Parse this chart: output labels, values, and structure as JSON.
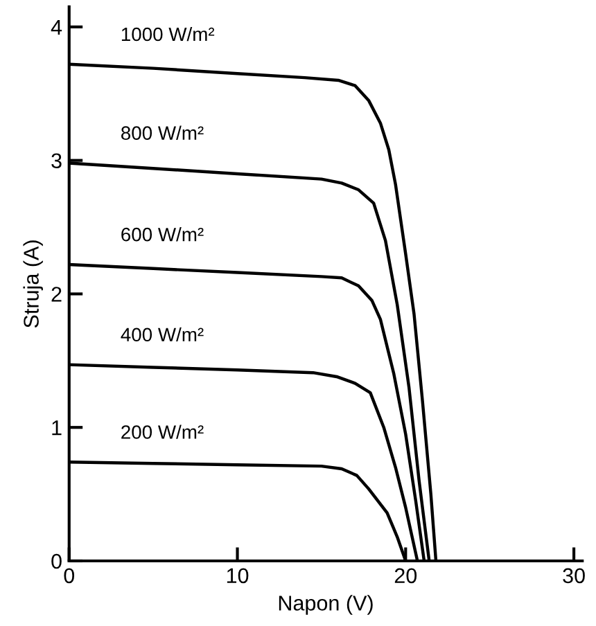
{
  "chart_data": {
    "type": "line",
    "xlabel": "Napon (V)",
    "ylabel": "Struja (A)",
    "xlim": [
      0,
      30.5
    ],
    "ylim": [
      0,
      4.15
    ],
    "xticks": [
      0,
      10,
      20,
      30
    ],
    "yticks": [
      0,
      1,
      2,
      3,
      4
    ],
    "grid": false,
    "legend": false,
    "marker": "none",
    "line_style": "solid",
    "series": [
      {
        "name": "1000 W/m²",
        "color": "#000000",
        "x": [
          0,
          5,
          10,
          14,
          16,
          17,
          17.8,
          18.5,
          19,
          19.4,
          20,
          20.5,
          21,
          21.5,
          21.8
        ],
        "values": [
          3.72,
          3.69,
          3.65,
          3.62,
          3.6,
          3.56,
          3.45,
          3.28,
          3.08,
          2.82,
          2.3,
          1.85,
          1.2,
          0.5,
          0
        ]
      },
      {
        "name": "800 W/m²",
        "color": "#000000",
        "x": [
          0,
          5,
          10,
          15,
          16.2,
          17.2,
          18.1,
          18.8,
          19.5,
          20.2,
          20.8,
          21.4
        ],
        "values": [
          2.98,
          2.94,
          2.9,
          2.86,
          2.83,
          2.78,
          2.68,
          2.4,
          1.92,
          1.3,
          0.6,
          0
        ]
      },
      {
        "name": "600 W/m²",
        "color": "#000000",
        "x": [
          0,
          5,
          10,
          15,
          16.2,
          17.2,
          18,
          18.5,
          19.3,
          20,
          20.6,
          21.1
        ],
        "values": [
          2.22,
          2.19,
          2.16,
          2.13,
          2.12,
          2.06,
          1.95,
          1.81,
          1.4,
          0.95,
          0.45,
          0
        ]
      },
      {
        "name": "400 W/m²",
        "color": "#000000",
        "x": [
          0,
          5,
          10,
          14.5,
          15.9,
          17,
          17.9,
          18.7,
          19.4,
          20,
          20.7
        ],
        "values": [
          1.47,
          1.45,
          1.43,
          1.41,
          1.38,
          1.33,
          1.26,
          1.0,
          0.7,
          0.4,
          0
        ]
      },
      {
        "name": "200 W/m²",
        "color": "#000000",
        "x": [
          0,
          5,
          10,
          15,
          16.2,
          17.1,
          17.8,
          18.9,
          19.5,
          20
        ],
        "values": [
          0.74,
          0.73,
          0.72,
          0.71,
          0.69,
          0.64,
          0.54,
          0.36,
          0.18,
          0
        ]
      }
    ]
  }
}
